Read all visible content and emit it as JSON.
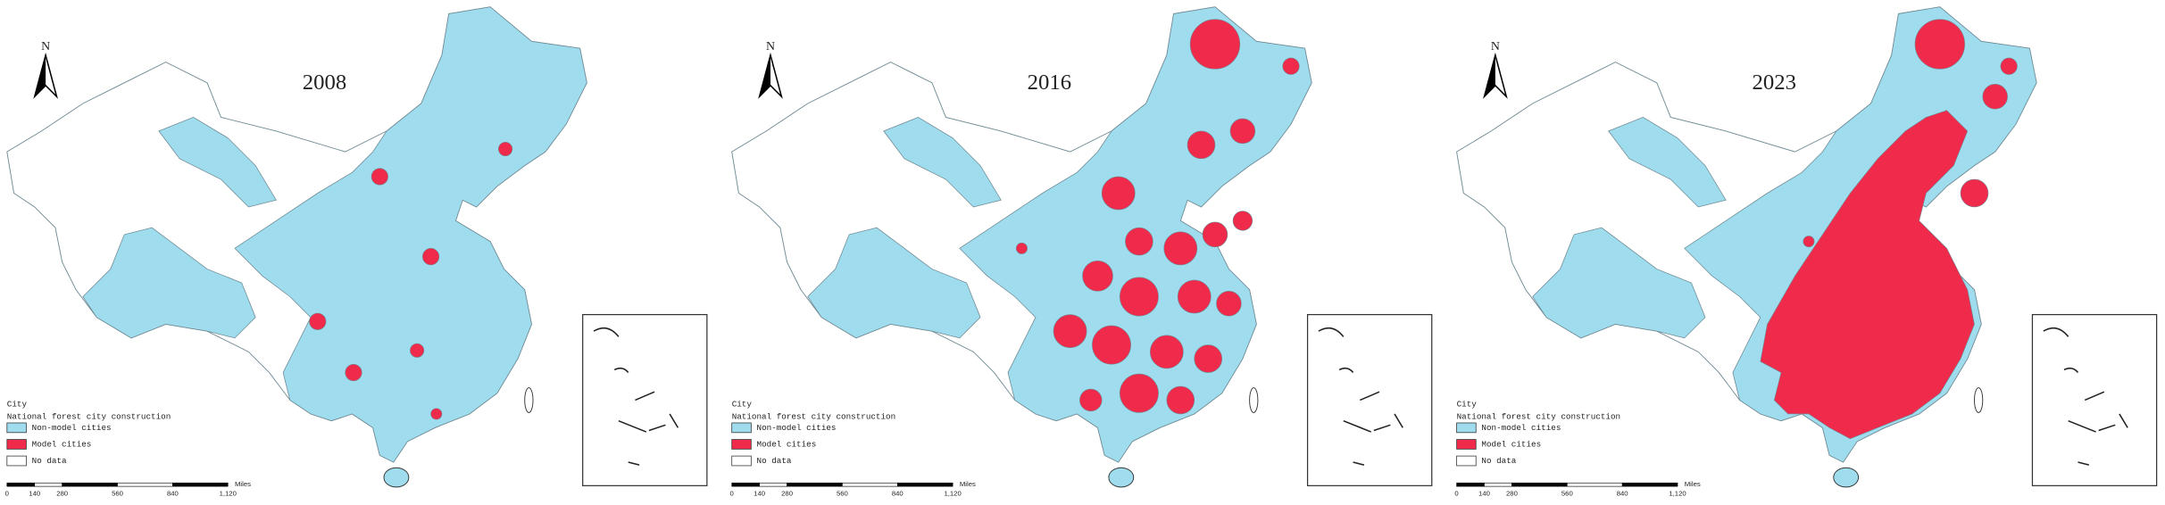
{
  "panels": [
    {
      "year": "2008",
      "north": "N",
      "legend": {
        "title": "City",
        "subtitle": "National forest city construction",
        "items": [
          "Non-model cities",
          "Model cities",
          "No data"
        ]
      },
      "scale": {
        "ticks": [
          "0",
          "140",
          "280",
          "560",
          "840",
          "1,120"
        ],
        "unit": "Miles"
      }
    },
    {
      "year": "2016",
      "north": "N",
      "legend": {
        "title": "City",
        "subtitle": "National forest city construction",
        "items": [
          "Non-model cities",
          "Model cities",
          "No data"
        ]
      },
      "scale": {
        "ticks": [
          "0",
          "140",
          "280",
          "560",
          "840",
          "1,120"
        ],
        "unit": "Miles"
      }
    },
    {
      "year": "2023",
      "north": "N",
      "legend": {
        "title": "City",
        "subtitle": "National forest city construction",
        "items": [
          "Non-model cities",
          "Model cities",
          "No data"
        ]
      },
      "scale": {
        "ticks": [
          "0",
          "140",
          "280",
          "560",
          "840",
          "1,120"
        ],
        "unit": "Miles"
      }
    }
  ]
}
